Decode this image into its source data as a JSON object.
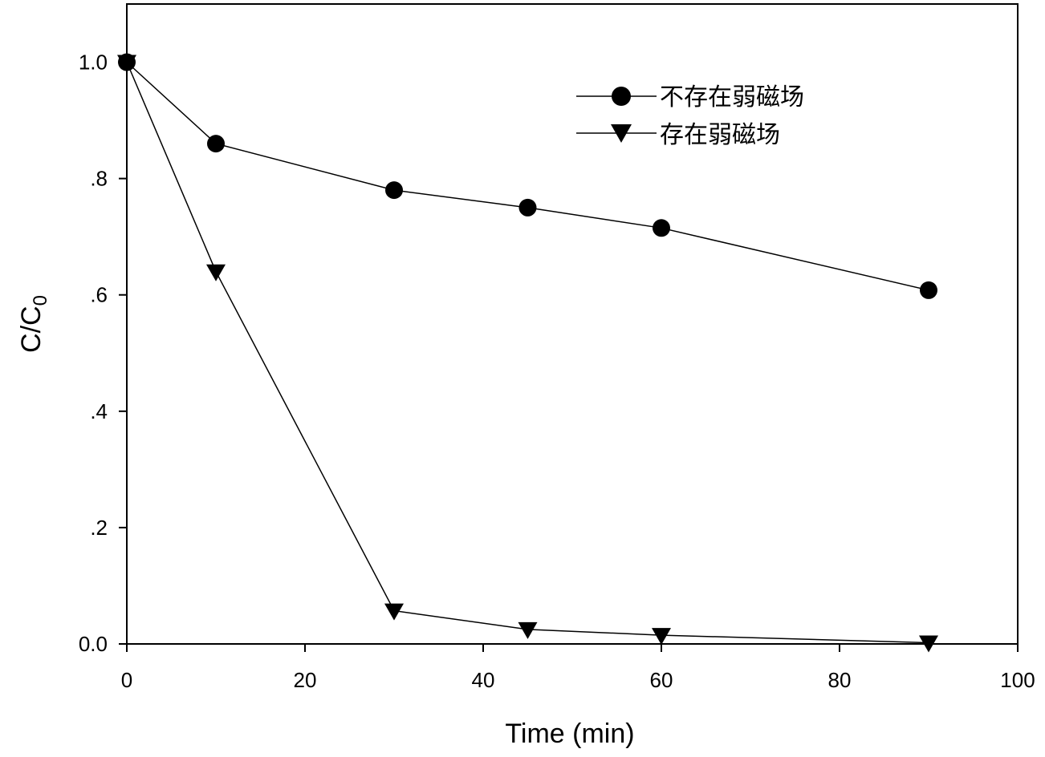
{
  "chart_data": {
    "type": "line",
    "xlabel": "Time (min)",
    "ylabel": "C/C",
    "ylabel_subscript": "0",
    "xlim": [
      0,
      100
    ],
    "ylim": [
      0,
      1.1
    ],
    "x_ticks": [
      0,
      20,
      40,
      60,
      80,
      100
    ],
    "x_tick_labels": [
      "0",
      "20",
      "40",
      "60",
      "80",
      "100"
    ],
    "y_ticks": [
      0,
      0.2,
      0.4,
      0.6,
      0.8,
      1.0
    ],
    "y_tick_labels": [
      "0.0",
      ".2",
      ".4",
      ".6",
      ".8",
      "1.0"
    ],
    "grid": false,
    "legend_position": "top-right",
    "series": [
      {
        "name": "不存在弱磁场",
        "marker": "circle",
        "color": "#000000",
        "x": [
          0,
          10,
          30,
          45,
          60,
          90
        ],
        "y": [
          1.0,
          0.86,
          0.78,
          0.75,
          0.715,
          0.608
        ]
      },
      {
        "name": "存在弱磁场",
        "marker": "triangle-down",
        "color": "#000000",
        "x": [
          0,
          10,
          30,
          45,
          60,
          90
        ],
        "y": [
          1.0,
          0.64,
          0.057,
          0.025,
          0.015,
          0.002
        ]
      }
    ]
  }
}
